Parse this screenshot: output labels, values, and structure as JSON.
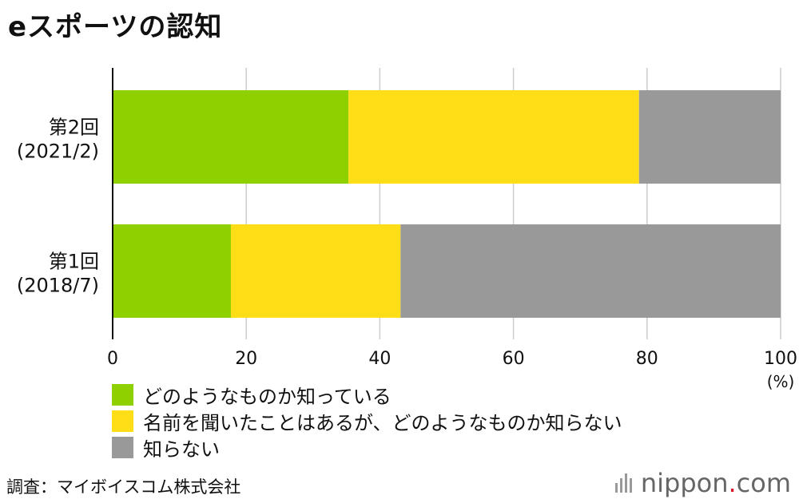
{
  "title": "eスポーツの認知",
  "chart_data": {
    "type": "bar",
    "orientation": "horizontal",
    "stacked": true,
    "categories": [
      [
        "第2回",
        "(2021/2)"
      ],
      [
        "第1回",
        "(2018/7)"
      ]
    ],
    "series": [
      {
        "name": "どのようなものか知っている",
        "color": "#8fd100",
        "values": [
          35.3,
          17.7
        ]
      },
      {
        "name": "名前を聞いたことはあるが、どのようなものか知らない",
        "color": "#ffde17",
        "values": [
          43.5,
          25.4
        ]
      },
      {
        "name": "知らない",
        "color": "#999999",
        "values": [
          21.2,
          56.9
        ]
      }
    ],
    "xlim": [
      0,
      100
    ],
    "xticks": [
      0,
      20,
      40,
      60,
      80,
      100
    ],
    "xunit": "(%)",
    "grid": true,
    "legend_placement": "bottom-left"
  },
  "source": "調査：マイボイスコム株式会社",
  "logo": {
    "name": "nippon",
    "dot": ".",
    "tld": "com"
  }
}
